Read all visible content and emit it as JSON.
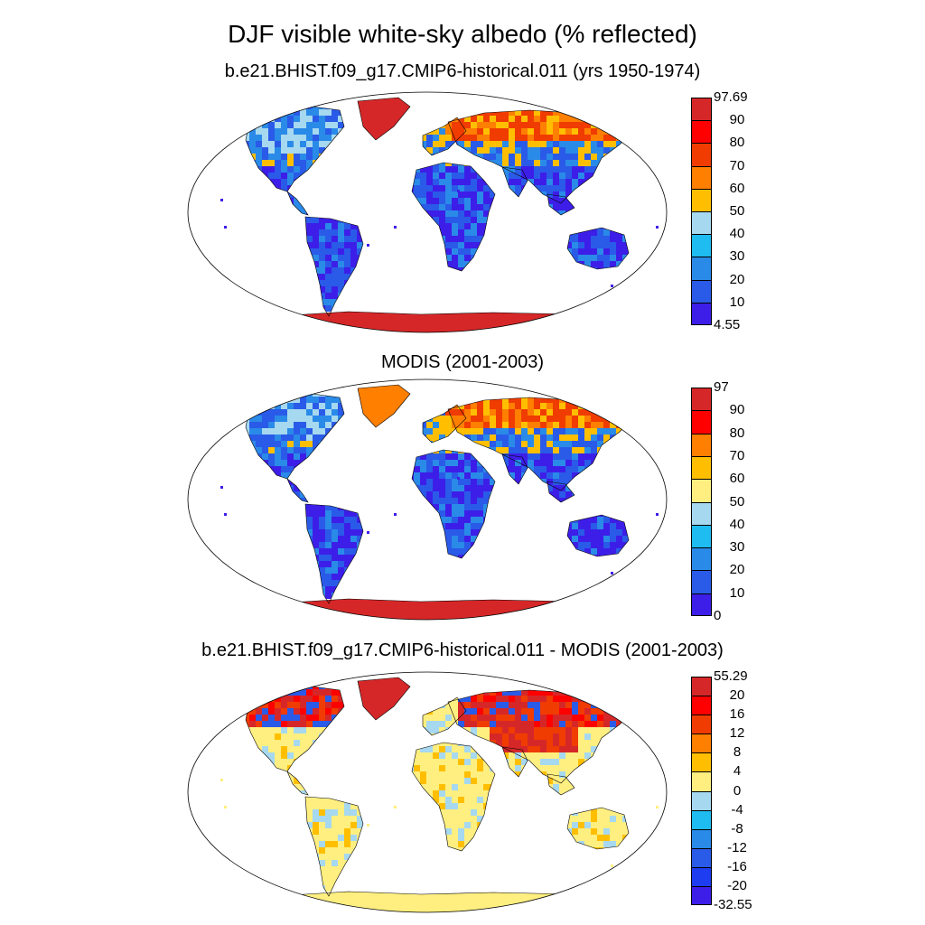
{
  "figure": {
    "title": "DJF visible white-sky albedo (% reflected)"
  },
  "panels": [
    {
      "id": "model",
      "title": "b.e21.BHIST.f09_g17.CMIP6-historical.011 (yrs 1950-1974)",
      "colorbar": {
        "labels": [
          "97.69",
          "90",
          "80",
          "70",
          "60",
          "50",
          "40",
          "30",
          "20",
          "10",
          "4.55"
        ],
        "colors": [
          "#d62728",
          "#ff0000",
          "#f03c00",
          "#ff7f00",
          "#ffbf00",
          "#a6d8f0",
          "#1ebcf0",
          "#2a8ae8",
          "#2a5ae8",
          "#3d1ee8"
        ]
      },
      "fields": {
        "land_colors": [
          "#2a5ae8",
          "#2a8ae8",
          "#3d1ee8",
          "#ffbf00",
          "#ff7f00",
          "#f03c00",
          "#a6d8f0"
        ],
        "antarctica_color": "#d62728",
        "greenland_color": "#d62728"
      }
    },
    {
      "id": "obs",
      "title": "MODIS (2001-2003)",
      "colorbar": {
        "labels": [
          "97",
          "90",
          "80",
          "70",
          "60",
          "50",
          "40",
          "30",
          "20",
          "10",
          "0"
        ],
        "colors": [
          "#d62728",
          "#ff0000",
          "#ff7f00",
          "#ffbf00",
          "#ffef80",
          "#a6d8f0",
          "#1ebcf0",
          "#2a8ae8",
          "#2a5ae8",
          "#3d1ee8"
        ]
      },
      "fields": {
        "land_colors": [
          "#2a5ae8",
          "#2a8ae8",
          "#3d1ee8",
          "#ffbf00",
          "#ff7f00",
          "#f03c00",
          "#a6d8f0"
        ],
        "antarctica_color": "#d62728",
        "greenland_color": "#ff7f00"
      }
    },
    {
      "id": "diff",
      "title": "b.e21.BHIST.f09_g17.CMIP6-historical.011 - MODIS (2001-2003)",
      "colorbar": {
        "labels": [
          "55.29",
          "20",
          "16",
          "12",
          "8",
          "4",
          "0",
          "-4",
          "-8",
          "-12",
          "-16",
          "-20",
          "-32.55"
        ],
        "colors": [
          "#d62728",
          "#ff0000",
          "#f03c00",
          "#ff7f00",
          "#ffbf00",
          "#ffef80",
          "#a6d8f0",
          "#1ebcf0",
          "#2a8ae8",
          "#2a5ae8",
          "#1e3cf0",
          "#3d1ee8"
        ]
      },
      "fields": {
        "land_colors": [
          "#ffef80",
          "#ffef80",
          "#ffef80",
          "#a6d8f0",
          "#ffbf00",
          "#ffef80"
        ],
        "antarctica_color": "#ffef80",
        "greenland_color": "#d62728"
      }
    }
  ]
}
